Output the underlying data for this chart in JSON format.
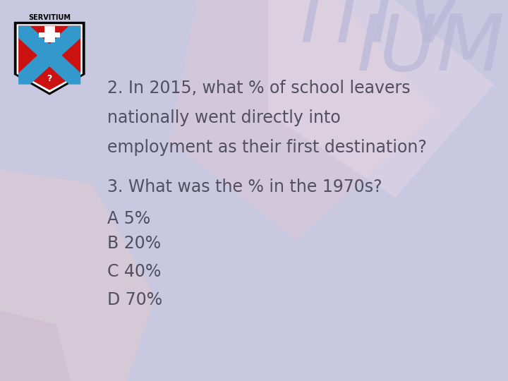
{
  "background_color": "#c8c8e0",
  "text_color": "#505060",
  "title_line1": "2. In 2015, what % of school leavers",
  "title_line2": "nationally went directly into",
  "title_line3": "employment as their first destination?",
  "question_label": "3. What was the % in the 1970s?",
  "options": [
    "A 5%",
    "B 20%",
    "C 40%",
    "D 70%"
  ],
  "title_fontsize": 17,
  "option_fontsize": 17,
  "question_fontsize": 17,
  "fig_width": 7.2,
  "fig_height": 5.4,
  "dpi": 100,
  "watermark_color": "#b8b8d8",
  "watermark_alpha": 0.7,
  "shape1_color": "#ddc8d8",
  "shape2_color": "#e8d8e8",
  "shape3_color": "#e0c8d0"
}
